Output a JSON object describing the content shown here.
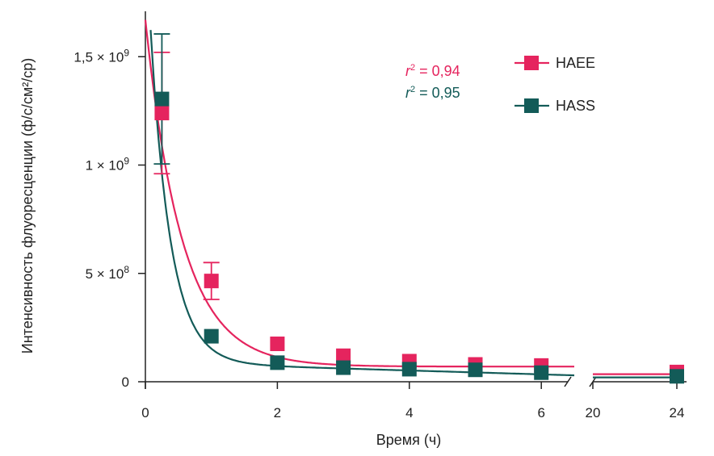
{
  "chart_data": {
    "type": "scatter",
    "xlabel": "Время (ч)",
    "ylabel": "Интенсивность флуоресценции (ф/с/см²/ср)",
    "ylim": [
      0,
      1700000000
    ],
    "x_ticks": [
      {
        "value": 0,
        "label": "0"
      },
      {
        "value": 2,
        "label": "2"
      },
      {
        "value": 4,
        "label": "4"
      },
      {
        "value": 6,
        "label": "6"
      },
      {
        "value": 20,
        "label": "20"
      },
      {
        "value": 24,
        "label": "24"
      }
    ],
    "y_ticks": [
      {
        "value": 0,
        "base": "0",
        "exp": ""
      },
      {
        "value": 500000000,
        "base": "5 × 10",
        "exp": "8"
      },
      {
        "value": 1000000000,
        "base": "1 × 10",
        "exp": "9"
      },
      {
        "value": 1500000000,
        "base": "1,5 × 10",
        "exp": "9"
      }
    ],
    "axis_break": {
      "from": 6.5,
      "to": 20
    },
    "series": [
      {
        "name": "HAEE",
        "color": "#e5245e",
        "r2_label": "r",
        "r2_exp": "2",
        "r2_value": " = 0,94",
        "x": [
          0.25,
          1,
          2,
          3,
          4,
          5,
          6,
          24
        ],
        "y": [
          1240000000,
          465000000,
          175000000,
          120000000,
          95000000,
          80000000,
          75000000,
          45000000
        ],
        "err": [
          280000000,
          85000000,
          0,
          0,
          0,
          0,
          0,
          0
        ],
        "fit": {
          "a": 1600000000,
          "k": 1.8,
          "c": 70000000,
          "tail": 35000000
        }
      },
      {
        "name": "HASS",
        "color": "#135b58",
        "r2_label": "r",
        "r2_exp": "2",
        "r2_value": " = 0,95",
        "x": [
          0.25,
          1,
          2,
          3,
          4,
          5,
          6,
          24
        ],
        "y": [
          1305000000,
          210000000,
          88000000,
          65000000,
          58000000,
          55000000,
          42000000,
          25000000
        ],
        "err": [
          300000000,
          0,
          0,
          0,
          0,
          0,
          0,
          0
        ],
        "fit": {
          "a": 2000000000,
          "k": 3.3,
          "c": 88000000,
          "slope": 9000000,
          "tail": 20000000
        }
      }
    ]
  }
}
